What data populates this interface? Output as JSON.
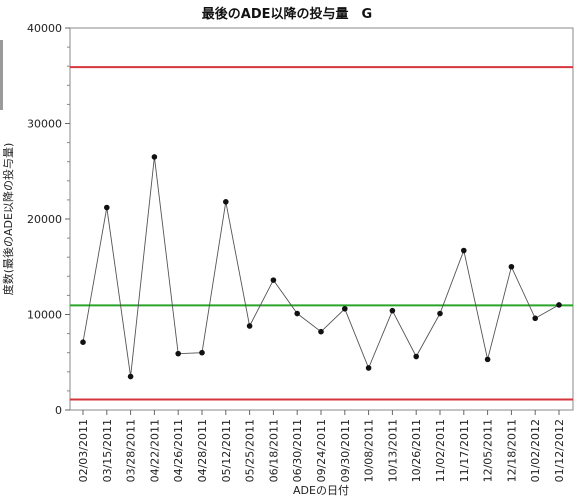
{
  "chart_data": {
    "type": "line",
    "title": "最後のADE以降の投与量　G",
    "xlabel": "ADEの日付",
    "ylabel": "度数(最後のADE以降の投与量)",
    "categories": [
      "02/03/2011",
      "03/15/2011",
      "03/28/2011",
      "04/22/2011",
      "04/26/2011",
      "04/28/2011",
      "05/12/2011",
      "05/25/2011",
      "06/18/2011",
      "06/30/2011",
      "09/24/2011",
      "09/30/2011",
      "10/08/2011",
      "10/13/2011",
      "10/26/2011",
      "11/02/2011",
      "11/17/2011",
      "12/05/2011",
      "12/18/2011",
      "01/02/2012",
      "01/12/2012"
    ],
    "series": [
      {
        "values": [
          7100,
          21200,
          3500,
          26500,
          5900,
          6000,
          21800,
          8800,
          13600,
          10100,
          8200,
          10600,
          4400,
          10400,
          5600,
          10100,
          16700,
          5300,
          15000,
          9600,
          11000
        ],
        "color": "#555555"
      }
    ],
    "ylim": [
      0,
      40000
    ],
    "yticks": [
      "0",
      "10000",
      "20000",
      "30000",
      "40000"
    ],
    "reference_lines": [
      {
        "value": 35900,
        "color": "#d6363d",
        "kind": "upper-limit"
      },
      {
        "value": 10950,
        "color": "#2aa52a",
        "kind": "center-line"
      },
      {
        "value": 1100,
        "color": "#d6363d",
        "kind": "lower-limit"
      }
    ],
    "grid": false,
    "legend": "none"
  }
}
